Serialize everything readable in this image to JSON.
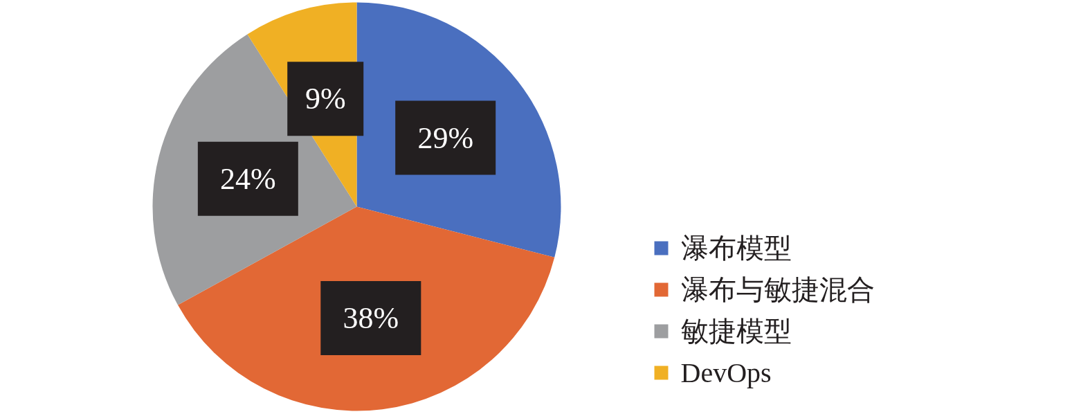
{
  "chart_data": {
    "type": "pie",
    "categories": [
      "瀑布模型",
      "瀑布与敏捷混合",
      "敏捷模型",
      "DevOps"
    ],
    "values": [
      29,
      38,
      24,
      9
    ],
    "colors": [
      "#4a6fbf",
      "#e26835",
      "#9d9ea0",
      "#f0b024"
    ],
    "value_labels": [
      "29%",
      "38%",
      "24%",
      "9%"
    ],
    "legend": "right"
  }
}
